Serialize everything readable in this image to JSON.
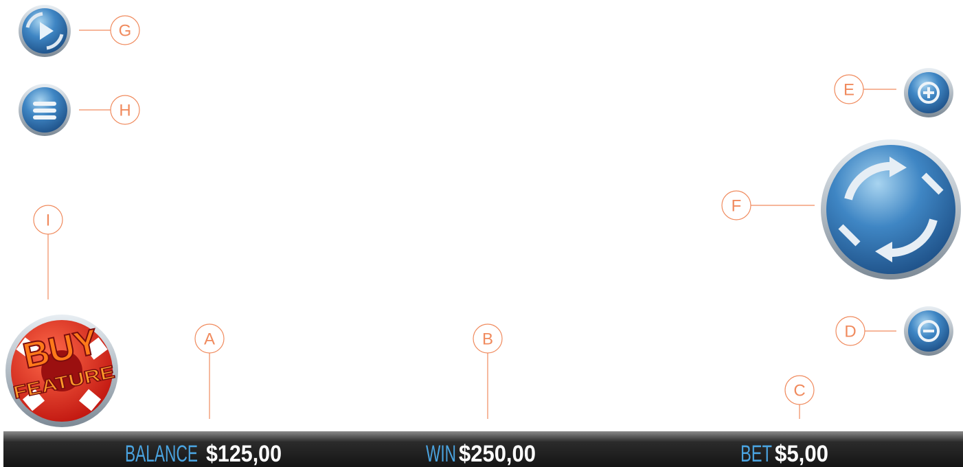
{
  "callouts": {
    "a": "A",
    "b": "B",
    "c": "C",
    "d": "D",
    "e": "E",
    "f": "F",
    "g": "G",
    "h": "H",
    "i": "I"
  },
  "status_bar": {
    "balance": {
      "label": "BALANCE",
      "value": "$125,00"
    },
    "win": {
      "label": "WIN",
      "value": "$250,00"
    },
    "bet": {
      "label": "BET",
      "value": "$5,00"
    }
  },
  "buy_feature": {
    "line1": "BUY",
    "line2": "FEATURE"
  }
}
